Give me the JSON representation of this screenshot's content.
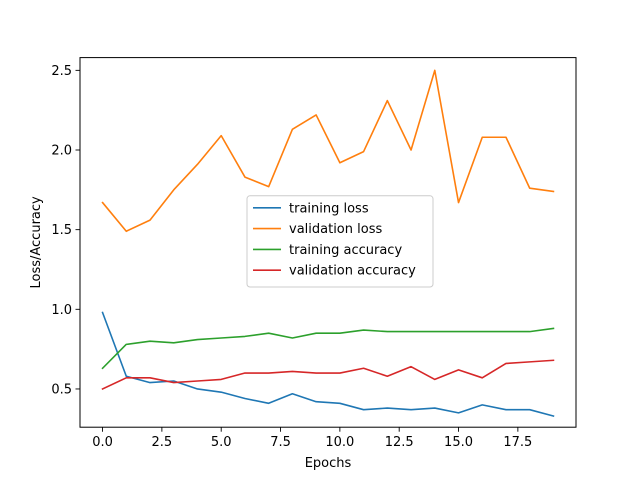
{
  "chart_data": {
    "type": "line",
    "title": "",
    "xlabel": "Epochs",
    "ylabel": "Loss/Accuracy",
    "xlim": [
      -0.95,
      19.95
    ],
    "ylim": [
      0.26,
      2.58
    ],
    "x": [
      0,
      1,
      2,
      3,
      4,
      5,
      6,
      7,
      8,
      9,
      10,
      11,
      12,
      13,
      14,
      15,
      16,
      17,
      18,
      19
    ],
    "xticks": [
      0.0,
      2.5,
      5.0,
      7.5,
      10.0,
      12.5,
      15.0,
      17.5
    ],
    "xtick_labels": [
      "0.0",
      "2.5",
      "5.0",
      "7.5",
      "10.0",
      "12.5",
      "15.0",
      "17.5"
    ],
    "yticks": [
      0.5,
      1.0,
      1.5,
      2.0,
      2.5
    ],
    "ytick_labels": [
      "0.5",
      "1.0",
      "1.5",
      "2.0",
      "2.5"
    ],
    "grid": false,
    "legend_position": "center",
    "series": [
      {
        "name": "training loss",
        "color": "#1f77b4",
        "values": [
          0.98,
          0.58,
          0.54,
          0.55,
          0.5,
          0.48,
          0.44,
          0.41,
          0.47,
          0.42,
          0.41,
          0.37,
          0.38,
          0.37,
          0.38,
          0.35,
          0.4,
          0.37,
          0.37,
          0.33
        ]
      },
      {
        "name": "validation loss",
        "color": "#ff7f0e",
        "values": [
          1.67,
          1.49,
          1.56,
          1.75,
          1.91,
          2.09,
          1.83,
          1.77,
          2.13,
          2.22,
          1.92,
          1.99,
          2.31,
          2.0,
          2.5,
          1.67,
          2.08,
          2.08,
          1.76,
          1.74
        ]
      },
      {
        "name": "training accuracy",
        "color": "#2ca02c",
        "values": [
          0.63,
          0.78,
          0.8,
          0.79,
          0.81,
          0.82,
          0.83,
          0.85,
          0.82,
          0.85,
          0.85,
          0.87,
          0.86,
          0.86,
          0.86,
          0.86,
          0.86,
          0.86,
          0.86,
          0.88
        ]
      },
      {
        "name": "validation accuracy",
        "color": "#d62728",
        "values": [
          0.5,
          0.57,
          0.57,
          0.54,
          0.55,
          0.56,
          0.6,
          0.6,
          0.61,
          0.6,
          0.6,
          0.63,
          0.58,
          0.64,
          0.56,
          0.62,
          0.57,
          0.66,
          0.67,
          0.68
        ]
      }
    ]
  }
}
